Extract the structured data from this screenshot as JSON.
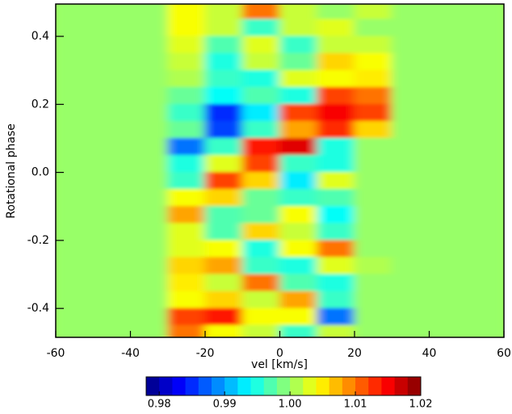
{
  "chart_data": {
    "type": "heatmap",
    "xlabel": "vel [km/s]",
    "ylabel": "Rotational phase",
    "xlim": [
      -60,
      60
    ],
    "ylim": [
      -0.485,
      0.495
    ],
    "xticks": [
      -60,
      -40,
      -20,
      0,
      20,
      40,
      60
    ],
    "yticks": [
      -0.4,
      -0.2,
      {
        "value": 0,
        "label": "0.0"
      },
      0.2,
      0.4
    ],
    "colormap": "jet",
    "clim": [
      0.978,
      1.02
    ],
    "cticks": [
      0.98,
      0.99,
      {
        "value": 1,
        "label": "1.00"
      },
      1.01,
      1.02
    ],
    "x": [
      -55,
      -45,
      -35,
      -25,
      -15,
      -5,
      5,
      15,
      25,
      35,
      45,
      55
    ],
    "y": [
      0.475,
      0.425,
      0.375,
      0.325,
      0.275,
      0.225,
      0.175,
      0.125,
      0.075,
      0.025,
      -0.025,
      -0.075,
      -0.125,
      -0.175,
      -0.225,
      -0.275,
      -0.325,
      -0.375,
      -0.425,
      -0.475
    ],
    "z": [
      [
        1,
        1,
        1,
        1.004,
        1.002,
        1.01,
        1.002,
        1,
        1.002,
        1,
        1,
        1
      ],
      [
        1,
        1,
        1,
        1.004,
        1.002,
        0.996,
        1.002,
        1.003,
        1,
        1,
        1,
        1
      ],
      [
        1,
        1,
        1,
        1.003,
        0.997,
        1.003,
        0.996,
        1.002,
        1.002,
        1,
        1,
        1
      ],
      [
        1,
        1,
        1,
        1.002,
        0.995,
        1.002,
        0.998,
        1.006,
        1.004,
        1,
        1,
        1
      ],
      [
        1,
        1,
        1,
        1.001,
        0.996,
        0.995,
        1.003,
        1.004,
        1.005,
        1,
        1,
        1
      ],
      [
        1,
        1,
        1,
        0.998,
        0.994,
        0.997,
        0.995,
        1.012,
        1.01,
        1,
        1,
        1
      ],
      [
        1,
        1,
        1,
        0.996,
        0.985,
        0.993,
        1.012,
        1.015,
        1.012,
        1,
        1,
        1
      ],
      [
        1,
        1,
        1,
        0.998,
        0.986,
        0.996,
        1.008,
        1.013,
        1.006,
        1,
        1,
        1
      ],
      [
        1,
        1,
        1,
        0.988,
        0.996,
        1.014,
        1.016,
        0.995,
        1,
        1,
        1,
        1
      ],
      [
        1,
        1,
        1,
        0.995,
        1.003,
        1.012,
        0.996,
        0.995,
        1,
        1,
        1,
        1
      ],
      [
        1,
        1,
        1,
        0.996,
        1.012,
        1.006,
        0.993,
        1.003,
        1,
        1,
        1,
        1
      ],
      [
        1,
        1,
        1,
        1.004,
        1.006,
        0.998,
        0.996,
        0.997,
        1,
        1,
        1,
        1
      ],
      [
        1,
        1,
        1,
        1.008,
        0.997,
        0.998,
        1.004,
        0.994,
        1,
        1,
        1,
        1
      ],
      [
        1,
        1,
        1,
        1.003,
        0.997,
        1.006,
        1.002,
        0.996,
        1,
        1,
        1,
        1
      ],
      [
        1,
        1,
        1,
        1.003,
        1.004,
        0.995,
        1.004,
        1.01,
        1,
        1,
        1,
        1
      ],
      [
        1,
        1,
        1,
        1.006,
        1.008,
        0.996,
        0.995,
        1.003,
        1.001,
        1,
        1,
        1
      ],
      [
        1,
        1,
        1,
        1.005,
        1.002,
        1.01,
        0.997,
        0.995,
        1,
        1,
        1,
        1
      ],
      [
        1,
        1,
        1,
        1.004,
        1.006,
        1.002,
        1.008,
        0.996,
        1,
        1,
        1,
        1
      ],
      [
        1,
        1,
        1,
        1.012,
        1.014,
        1.004,
        1.004,
        0.988,
        1,
        1,
        1,
        1
      ],
      [
        1,
        1,
        1,
        1.01,
        1.004,
        1.002,
        0.996,
        1.002,
        1,
        1,
        1,
        1
      ]
    ]
  }
}
